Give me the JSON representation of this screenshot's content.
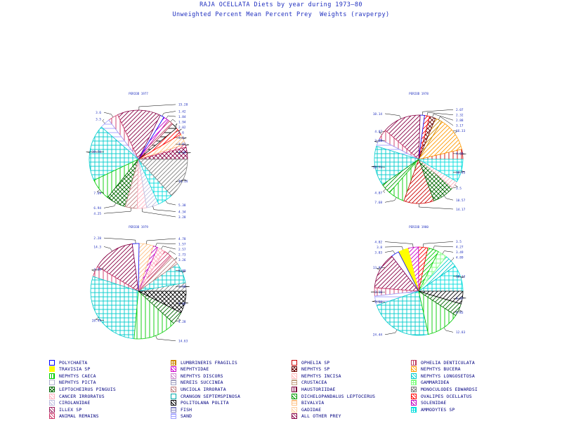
{
  "title": "RAJA OCELLATA Diets by year during 1973—80",
  "subtitle": "Unweighted Percent Mean Percent Prey  Weights (ravperpy)",
  "colors": {
    "text": "#1f2fbf",
    "legend_text": "#000080"
  },
  "legend": [
    {
      "name": "POLYCHAETA",
      "color": "#0000ff",
      "pattern": "outline"
    },
    {
      "name": "LUMBRINERIS FRAGILIS",
      "color": "#cc8800",
      "pattern": "cross"
    },
    {
      "name": "OPHELIA SP",
      "color": "#cc0000",
      "pattern": "outline"
    },
    {
      "name": "OPHELIA DENTICULATA",
      "color": "#c04060",
      "pattern": "vertical"
    },
    {
      "name": "TRAVISIA SP",
      "color": "#ffff00",
      "pattern": "solid"
    },
    {
      "name": "NEPHTYIDAE",
      "color": "#cc00cc",
      "pattern": "diag"
    },
    {
      "name": "NEPHTYS SP",
      "color": "#660000",
      "pattern": "xcross"
    },
    {
      "name": "NEPHTYS BUCERA",
      "color": "#ff9900",
      "pattern": "diag"
    },
    {
      "name": "NEPHTYS CAECA",
      "color": "#00cc00",
      "pattern": "vertical"
    },
    {
      "name": "NEPHTYS DISCORS",
      "color": "#cc88cc",
      "pattern": "diag"
    },
    {
      "name": "NEPHTYS INCISA",
      "color": "#ffbbbb",
      "pattern": "diag"
    },
    {
      "name": "NEPHTYS LONGOSETOSA",
      "color": "#00cccc",
      "pattern": "diag"
    },
    {
      "name": "NEPHTYS PICTA",
      "color": "#b0b0d0",
      "pattern": "outline"
    },
    {
      "name": "NEREIS SUCCINEA",
      "color": "#a0a0c0",
      "pattern": "horizontal"
    },
    {
      "name": "CRUSTACEA",
      "color": "#c0a080",
      "pattern": "horizontal"
    },
    {
      "name": "GAMMARIDEA",
      "color": "#80ff80",
      "pattern": "cross"
    },
    {
      "name": "LEPTOCHEIRUS PINGUIS",
      "color": "#006600",
      "pattern": "xcross"
    },
    {
      "name": "UNCIOLA IRRORATA",
      "color": "#c08080",
      "pattern": "diag"
    },
    {
      "name": "HAUSTORIIDAE",
      "color": "#800040",
      "pattern": "vertical"
    },
    {
      "name": "MONOCULODES EDWARDSI",
      "color": "#808080",
      "pattern": "xcross"
    },
    {
      "name": "CANCER IRRORATUS",
      "color": "#ffb0c0",
      "pattern": "diag"
    },
    {
      "name": "CRANGON SEPTEMSPINOSA",
      "color": "#00aaaa",
      "pattern": "outline"
    },
    {
      "name": "DICHELOPANDALUS LEPTOCERUS",
      "color": "#009900",
      "pattern": "diag"
    },
    {
      "name": "OVALIPES OCELLATUS",
      "color": "#ff0000",
      "pattern": "diag"
    },
    {
      "name": "CIROLANIDAE",
      "color": "#c0c0e0",
      "pattern": "diag"
    },
    {
      "name": "POLITOLANA POLITA",
      "color": "#000000",
      "pattern": "diag"
    },
    {
      "name": "BIVALVIA",
      "color": "#ffc080",
      "pattern": "horizontal"
    },
    {
      "name": "SOLENIDAE",
      "color": "#c000c0",
      "pattern": "diag"
    },
    {
      "name": "ILLEX SP",
      "color": "#a02060",
      "pattern": "diag"
    },
    {
      "name": "FISH",
      "color": "#8080c0",
      "pattern": "horizontal"
    },
    {
      "name": "GADIDAE",
      "color": "#ffd0a0",
      "pattern": "diag"
    },
    {
      "name": "AMMODYTES SP",
      "color": "#00dddd",
      "pattern": "cross"
    },
    {
      "name": "ANIMAL REMAINS",
      "color": "#cc3366",
      "pattern": "diag"
    },
    {
      "name": "SAND",
      "color": "#a0a0ff",
      "pattern": "horizontal"
    },
    {
      "name": "ALL OTHER PREY",
      "color": "#880044",
      "pattern": "diag"
    }
  ],
  "chart_data": [
    {
      "type": "pie",
      "title": "PERIOD 1977",
      "slices": [
        {
          "label": "4.28",
          "value": 4.28,
          "color": "#880044",
          "pattern": "xcross"
        },
        {
          "label": "1.02",
          "value": 1.02,
          "color": "#cc3366",
          "pattern": "diag"
        },
        {
          "label": "3.8",
          "value": 3.8,
          "color": "#ffc080",
          "pattern": "diag"
        },
        {
          "label": "2.6",
          "value": 2.6,
          "color": "#ff0000",
          "pattern": "diag"
        },
        {
          "label": "2.02",
          "value": 2.02,
          "color": "#000000",
          "pattern": "horizontal"
        },
        {
          "label": "1.94",
          "value": 1.94,
          "color": "#c04060",
          "pattern": "diag"
        },
        {
          "label": "1.84",
          "value": 1.84,
          "color": "#cc00cc",
          "pattern": "diag"
        },
        {
          "label": "1.42",
          "value": 1.42,
          "color": "#0000ff",
          "pattern": "outline"
        },
        {
          "label": "15.28",
          "value": 15.28,
          "color": "#880044",
          "pattern": "diag"
        },
        {
          "label": "3.6",
          "value": 3.6,
          "color": "#cc3366",
          "pattern": "vertical"
        },
        {
          "label": "3.5",
          "value": 3.5,
          "color": "#a0a0ff",
          "pattern": "horizontal"
        },
        {
          "label": "19.74",
          "value": 19.74,
          "color": "#00cccc",
          "pattern": "cross"
        },
        {
          "label": "7.69",
          "value": 7.69,
          "color": "#00cc00",
          "pattern": "vertical"
        },
        {
          "label": "6.94",
          "value": 6.94,
          "color": "#006600",
          "pattern": "xcross"
        },
        {
          "label": "4.25",
          "value": 4.25,
          "color": "#c08080",
          "pattern": "diag"
        },
        {
          "label": "3.28",
          "value": 3.28,
          "color": "#ffb0c0",
          "pattern": "diag"
        },
        {
          "label": "4.34",
          "value": 4.34,
          "color": "#c0c0e0",
          "pattern": "diag"
        },
        {
          "label": "5.38",
          "value": 5.38,
          "color": "#00dddd",
          "pattern": "cross"
        },
        {
          "label": "14.14",
          "value": 14.14,
          "color": "#808080",
          "pattern": "diag"
        }
      ]
    },
    {
      "type": "pie",
      "title": "PERIOD 1978",
      "slices": [
        {
          "label": "4.69",
          "value": 4.69,
          "color": "#cc0000",
          "pattern": "vertical"
        },
        {
          "label": "16.33",
          "value": 16.33,
          "color": "#ff9900",
          "pattern": "diag"
        },
        {
          "label": "3.17",
          "value": 3.17,
          "color": "#cc8800",
          "pattern": "diag"
        },
        {
          "label": "2.88",
          "value": 2.88,
          "color": "#660000",
          "pattern": "xcross"
        },
        {
          "label": "2.32",
          "value": 2.32,
          "color": "#ff0000",
          "pattern": "diag"
        },
        {
          "label": "2.07",
          "value": 2.07,
          "color": "#0000ff",
          "pattern": "outline"
        },
        {
          "label": "18.14",
          "value": 18.14,
          "color": "#880044",
          "pattern": "diag"
        },
        {
          "label": "4.87",
          "value": 4.87,
          "color": "#cc3366",
          "pattern": "vertical"
        },
        {
          "label": "3.58",
          "value": 3.58,
          "color": "#a0a0ff",
          "pattern": "horizontal"
        },
        {
          "label": "18.71",
          "value": 18.71,
          "color": "#00cccc",
          "pattern": "cross"
        },
        {
          "label": "4.87",
          "value": 4.87,
          "color": "#009900",
          "pattern": "diag"
        },
        {
          "label": "7.68",
          "value": 7.68,
          "color": "#00cc00",
          "pattern": "vertical"
        },
        {
          "label": "14.17",
          "value": 14.17,
          "color": "#cc0000",
          "pattern": "diag"
        },
        {
          "label": "10.57",
          "value": 10.57,
          "color": "#006600",
          "pattern": "xcross"
        },
        {
          "label": "3.5",
          "value": 3.5,
          "color": "#ffb0c0",
          "pattern": "diag"
        },
        {
          "label": "10.83",
          "value": 10.83,
          "color": "#00dddd",
          "pattern": "cross"
        }
      ]
    },
    {
      "type": "pie",
      "title": "PERIOD 1979",
      "slices": [
        {
          "label": "2.88",
          "value": 2.88,
          "color": "#808080",
          "pattern": "diag"
        },
        {
          "label": "6.89",
          "value": 6.89,
          "color": "#00cccc",
          "pattern": "cross"
        },
        {
          "label": "3.26",
          "value": 3.26,
          "color": "#c08080",
          "pattern": "diag"
        },
        {
          "label": "2.73",
          "value": 2.73,
          "color": "#cc3366",
          "pattern": "diag"
        },
        {
          "label": "2.57",
          "value": 2.57,
          "color": "#ffb0c0",
          "pattern": "xcross"
        },
        {
          "label": "1.57",
          "value": 1.57,
          "color": "#c000c0",
          "pattern": "diag"
        },
        {
          "label": "4.78",
          "value": 4.78,
          "color": "#ffc080",
          "pattern": "diag"
        },
        {
          "label": "2.28",
          "value": 2.28,
          "color": "#0000ff",
          "pattern": "outline"
        },
        {
          "label": "14.3",
          "value": 14.3,
          "color": "#880044",
          "pattern": "diag"
        },
        {
          "label": "3.59",
          "value": 3.59,
          "color": "#cc3366",
          "pattern": "vertical"
        },
        {
          "label": "28.43",
          "value": 28.43,
          "color": "#00cccc",
          "pattern": "cross"
        },
        {
          "label": "14.63",
          "value": 14.63,
          "color": "#00cc00",
          "pattern": "vertical"
        },
        {
          "label": "4.28",
          "value": 4.28,
          "color": "#006600",
          "pattern": "diag"
        },
        {
          "label": "7.43",
          "value": 7.43,
          "color": "#000000",
          "pattern": "xcross"
        }
      ]
    },
    {
      "type": "pie",
      "title": "PERIOD 1980",
      "slices": [
        {
          "label": "10.13",
          "value": 10.13,
          "color": "#00dddd",
          "pattern": "cross"
        },
        {
          "label": "4.89",
          "value": 4.89,
          "color": "#00cccc",
          "pattern": "diag"
        },
        {
          "label": "3.49",
          "value": 3.49,
          "color": "#80ff80",
          "pattern": "cross"
        },
        {
          "label": "4.27",
          "value": 4.27,
          "color": "#00cc00",
          "pattern": "diag"
        },
        {
          "label": "3.5",
          "value": 3.5,
          "color": "#ff0000",
          "pattern": "diag"
        },
        {
          "label": "4.02",
          "value": 4.02,
          "color": "#cc00cc",
          "pattern": "diag"
        },
        {
          "label": "3.8",
          "value": 3.8,
          "color": "#ffff00",
          "pattern": "solid"
        },
        {
          "label": "3.03",
          "value": 3.03,
          "color": "#0000ff",
          "pattern": "outline"
        },
        {
          "label": "13.97",
          "value": 13.97,
          "color": "#880044",
          "pattern": "diag"
        },
        {
          "label": "3.16",
          "value": 3.16,
          "color": "#cc3366",
          "pattern": "vertical"
        },
        {
          "label": "3.58",
          "value": 3.58,
          "color": "#a0a0ff",
          "pattern": "horizontal"
        },
        {
          "label": "24.44",
          "value": 24.44,
          "color": "#00cccc",
          "pattern": "cross"
        },
        {
          "label": "12.83",
          "value": 12.83,
          "color": "#00cc00",
          "pattern": "vertical"
        },
        {
          "label": "4.83",
          "value": 4.83,
          "color": "#006600",
          "pattern": "diag"
        },
        {
          "label": "4.87",
          "value": 4.87,
          "color": "#000000",
          "pattern": "diag"
        }
      ]
    }
  ]
}
